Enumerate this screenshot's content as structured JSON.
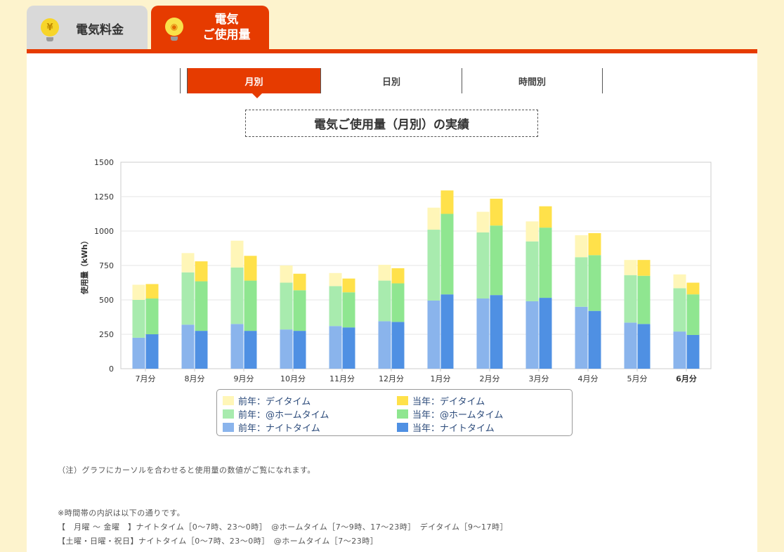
{
  "tabs": {
    "bill_icon": "¥",
    "bill_label": "電気料金",
    "usage_icon": "💡",
    "usage_label_line1": "電気",
    "usage_label_line2": "ご使用量"
  },
  "subtabs": [
    "月別",
    "日別",
    "時間別"
  ],
  "chart_title": "電気ご使用量（月別）の実績",
  "colors": {
    "prev_day": "#fff6b8",
    "prev_home": "#a8ebae",
    "prev_night": "#8ab4ec",
    "cur_day": "#ffe14a",
    "cur_home": "#8fe690",
    "cur_night": "#4f90e3",
    "accent": "#e63b00"
  },
  "chart_data": {
    "type": "bar",
    "stacked": true,
    "ylabel": "使用量（kWh）",
    "ylim": [
      0,
      1500
    ],
    "yticks": [
      0,
      250,
      500,
      750,
      1000,
      1250,
      1500
    ],
    "grid": true,
    "categories": [
      "7月分",
      "8月分",
      "9月分",
      "10月分",
      "11月分",
      "12月分",
      "1月分",
      "2月分",
      "3月分",
      "4月分",
      "5月分",
      "6月分"
    ],
    "bold_category": "6月分",
    "series": [
      {
        "name": "前年：デイタイム",
        "stack": "前年",
        "values": [
          110,
          140,
          195,
          125,
          95,
          115,
          160,
          150,
          145,
          160,
          110,
          100
        ]
      },
      {
        "name": "前年：@ホームタイム",
        "stack": "前年",
        "values": [
          275,
          380,
          410,
          340,
          290,
          295,
          515,
          480,
          435,
          360,
          345,
          315
        ]
      },
      {
        "name": "前年：ナイトタイム",
        "stack": "前年",
        "values": [
          225,
          320,
          325,
          285,
          310,
          345,
          495,
          510,
          490,
          450,
          335,
          270
        ]
      },
      {
        "name": "当年：デイタイム",
        "stack": "当年",
        "values": [
          105,
          145,
          180,
          120,
          100,
          110,
          170,
          195,
          155,
          160,
          115,
          85
        ]
      },
      {
        "name": "当年：@ホームタイム",
        "stack": "当年",
        "values": [
          260,
          360,
          365,
          295,
          255,
          280,
          585,
          505,
          510,
          405,
          350,
          295
        ]
      },
      {
        "name": "当年：ナイトタイム",
        "stack": "当年",
        "values": [
          250,
          275,
          275,
          275,
          300,
          340,
          540,
          535,
          515,
          420,
          325,
          245
        ]
      }
    ]
  },
  "legend": [
    {
      "label": "前年：デイタイム",
      "color_key": "prev_day"
    },
    {
      "label": "当年：デイタイム",
      "color_key": "cur_day"
    },
    {
      "label": "前年：@ホームタイム",
      "color_key": "prev_home"
    },
    {
      "label": "当年：@ホームタイム",
      "color_key": "cur_home"
    },
    {
      "label": "前年：ナイトタイム",
      "color_key": "prev_night"
    },
    {
      "label": "当年：ナイトタイム",
      "color_key": "cur_night"
    }
  ],
  "notes": {
    "hover": "（注）グラフにカーソルを合わせると使用量の数値がご覧になれます。",
    "timezone_intro": "※時間帯の内訳は以下の通りです。",
    "weekday": "【　月曜 ～ 金曜　】ナイトタイム［0～7時、23～0時］　@ホームタイム［7～9時、17～23時］　デイタイム［9～17時］",
    "weekend": "【土曜・日曜・祝日】ナイトタイム［0～7時、23～0時］　@ホームタイム［7～23時］"
  }
}
